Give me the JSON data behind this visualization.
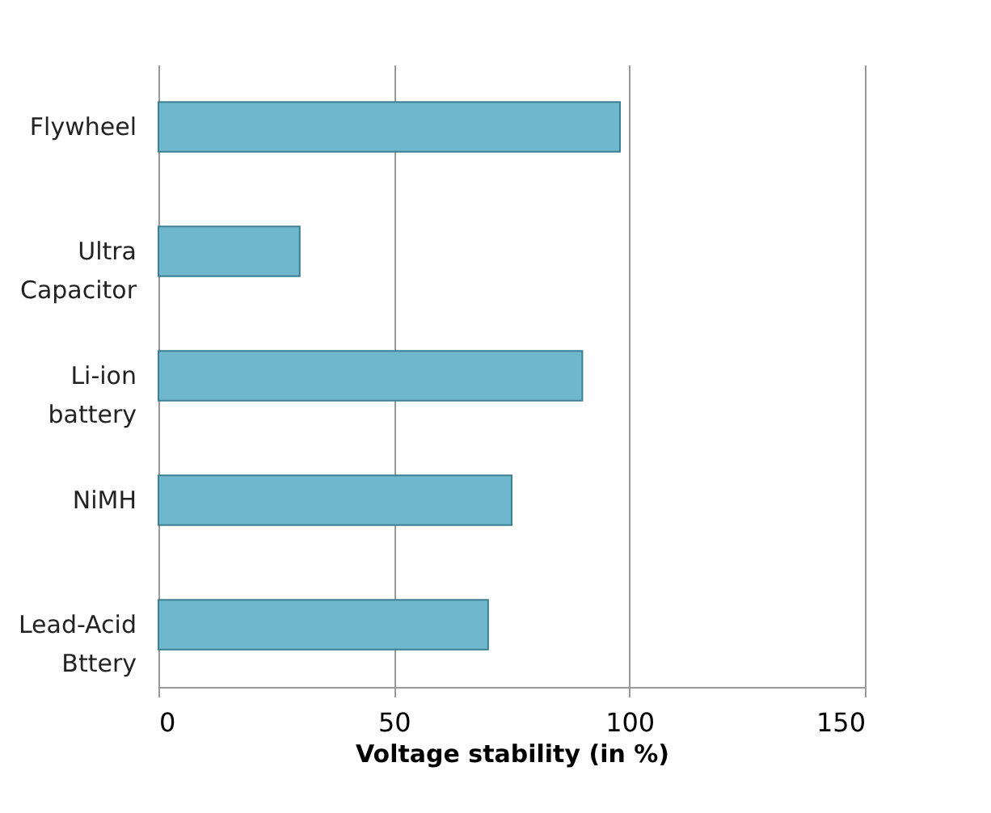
{
  "chart_data": {
    "type": "bar",
    "orientation": "horizontal",
    "categories": [
      "Flywheel",
      "Ultra Capacitor",
      "Li-ion battery",
      "NiMH",
      "Lead-Acid Bttery"
    ],
    "values": [
      98,
      30,
      90,
      75,
      70
    ],
    "color": "#6fb7cc",
    "xlabel": "Voltage stability (in %)",
    "xlim": [
      0,
      150
    ],
    "xticks": [
      0,
      50,
      100,
      150
    ],
    "grid": "x"
  }
}
